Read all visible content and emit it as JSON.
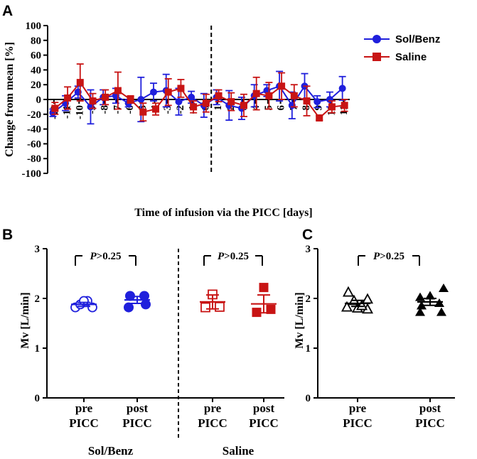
{
  "colors": {
    "solbenz": "#1f1fdc",
    "saline": "#c81414",
    "axis": "#000000"
  },
  "chart_data": [
    {
      "panel": "A",
      "type": "line",
      "ylabel": "Change from mean [%]",
      "xlabel": "Time of infusion via the PICC [days]",
      "ylim": [
        -100,
        100
      ],
      "yticks": [
        -100,
        -80,
        -60,
        -40,
        -20,
        0,
        20,
        40,
        60,
        80,
        100
      ],
      "xticks": [
        -12,
        -11,
        -10,
        -9,
        -8,
        -7,
        -6,
        -5,
        -4,
        -3,
        -2,
        -1,
        0,
        1,
        2,
        3,
        4,
        5,
        6,
        7,
        8,
        9,
        10,
        11
      ],
      "infusion_start_x": 0,
      "legend_position": "top-right",
      "series": [
        {
          "name": "Sol/Benz",
          "color": "#1f1fdc",
          "marker": "circle",
          "x": [
            -12,
            -11,
            -10,
            -9,
            -8,
            -7,
            -6,
            -5,
            -4,
            -3,
            -2,
            -1,
            0,
            1,
            2,
            3,
            4,
            5,
            6,
            7,
            8,
            9,
            10,
            11
          ],
          "y": [
            -18,
            -5,
            10,
            -10,
            3,
            5,
            -5,
            0,
            10,
            12,
            -3,
            3,
            -8,
            3,
            -8,
            -12,
            5,
            12,
            18,
            -8,
            18,
            -3,
            0,
            15
          ],
          "err": [
            5,
            10,
            8,
            23,
            10,
            10,
            5,
            30,
            12,
            22,
            18,
            8,
            16,
            10,
            20,
            15,
            15,
            8,
            20,
            18,
            17,
            8,
            10,
            16
          ]
        },
        {
          "name": "Saline",
          "color": "#c81414",
          "marker": "square",
          "x": [
            -12,
            -11,
            -10,
            -9,
            -8,
            -7,
            -6,
            -5,
            -4,
            -3,
            -2,
            -1,
            0,
            1,
            2,
            3,
            4,
            5,
            6,
            7,
            8,
            9,
            10,
            11
          ],
          "y": [
            -12,
            2,
            23,
            -2,
            3,
            12,
            0,
            -17,
            -13,
            10,
            15,
            -10,
            -5,
            5,
            -3,
            -8,
            8,
            5,
            18,
            5,
            -2,
            -25,
            -10,
            -8
          ],
          "err": [
            8,
            15,
            25,
            10,
            10,
            25,
            5,
            12,
            8,
            18,
            12,
            8,
            12,
            8,
            12,
            15,
            22,
            18,
            18,
            15,
            20,
            3,
            8,
            8
          ]
        }
      ]
    },
    {
      "panel": "B",
      "type": "scatter",
      "ylabel": "Mv [L/min]",
      "ylim": [
        0,
        3
      ],
      "yticks": [
        0,
        1,
        2,
        3
      ],
      "annotations": [
        "P>0.25",
        "P>0.25"
      ],
      "groups": [
        {
          "label": "Sol/Benz",
          "columns": [
            {
              "label": [
                "pre",
                "PICC"
              ],
              "marker": "circle-open",
              "color": "#1f1fdc",
              "values": [
                1.82,
                1.82,
                1.88,
                1.95,
                1.95
              ],
              "mean": 1.88,
              "sem": 0.04
            },
            {
              "label": [
                "post",
                "PICC"
              ],
              "marker": "circle-filled",
              "color": "#1f1fdc",
              "values": [
                1.82,
                1.88,
                2.05,
                2.05
              ],
              "mean": 1.97,
              "sem": 0.07
            }
          ]
        },
        {
          "label": "Saline",
          "columns": [
            {
              "label": [
                "pre",
                "PICC"
              ],
              "marker": "square-open",
              "color": "#c81414",
              "values": [
                1.82,
                1.83,
                2.08
              ],
              "mean": 1.93,
              "sem": 0.14
            },
            {
              "label": [
                "post",
                "PICC"
              ],
              "marker": "square-filled",
              "color": "#c81414",
              "values": [
                1.72,
                1.78,
                2.22
              ],
              "mean": 1.89,
              "sem": 0.18
            }
          ]
        }
      ]
    },
    {
      "panel": "C",
      "type": "scatter",
      "ylabel": "Mv [L/min]",
      "ylim": [
        0,
        3
      ],
      "yticks": [
        0,
        1,
        2,
        3
      ],
      "annotations": [
        "P>0.25"
      ],
      "columns": [
        {
          "label": [
            "pre",
            "PICC"
          ],
          "marker": "triangle-open",
          "color": "#000000",
          "values": [
            2.12,
            1.98,
            1.95,
            1.82,
            1.8,
            1.78,
            1.85
          ],
          "mean": 1.9,
          "sem": 0.06
        },
        {
          "label": [
            "post",
            "PICC"
          ],
          "marker": "triangle-filled",
          "color": "#000000",
          "values": [
            2.2,
            2.05,
            2.02,
            1.9,
            1.85,
            1.72,
            1.72
          ],
          "mean": 1.93,
          "sem": 0.07
        }
      ]
    }
  ]
}
